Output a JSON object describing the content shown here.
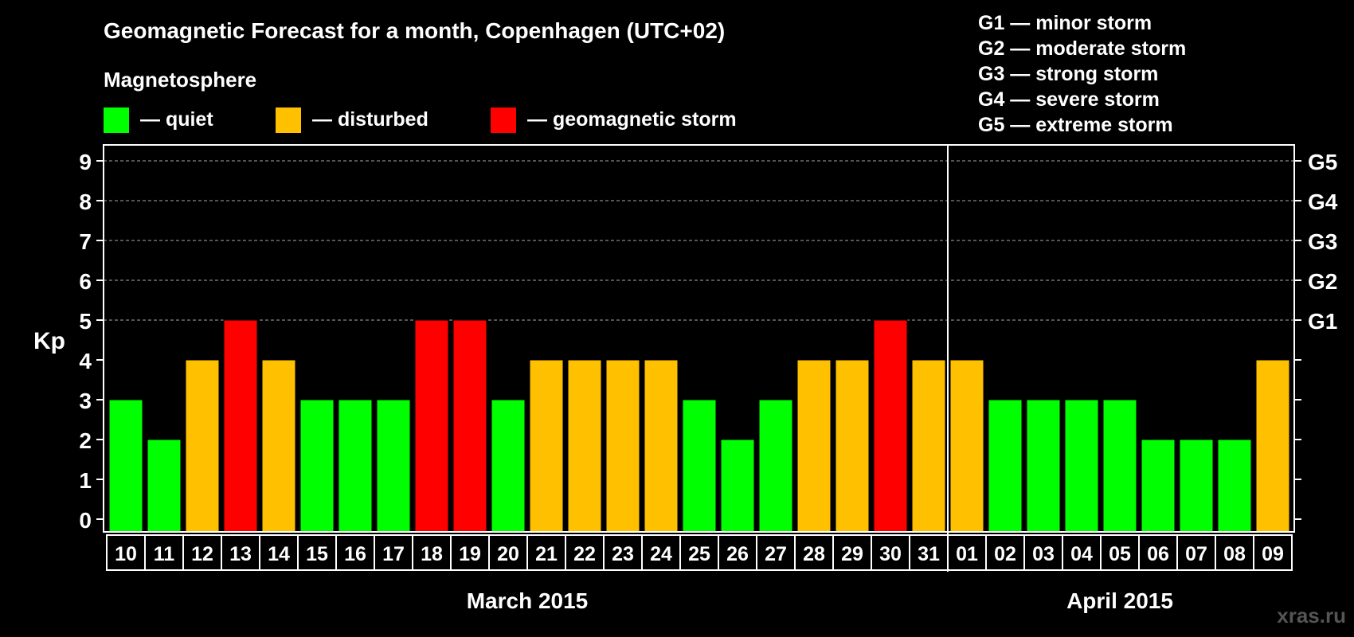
{
  "chart_data": {
    "type": "bar",
    "title": "Geomagnetic Forecast for a month, Copenhagen (UTC+02)",
    "ylabel": "Kp",
    "ylim": [
      0,
      9
    ],
    "yticks": [
      "0",
      "1",
      "2",
      "3",
      "4",
      "5",
      "6",
      "7",
      "8",
      "9"
    ],
    "right_ticks": [
      {
        "kp": 5,
        "label": "G1"
      },
      {
        "kp": 6,
        "label": "G2"
      },
      {
        "kp": 7,
        "label": "G3"
      },
      {
        "kp": 8,
        "label": "G4"
      },
      {
        "kp": 9,
        "label": "G5"
      }
    ],
    "grid_dashed_from": 5,
    "legend": {
      "heading": "Magnetosphere",
      "items": [
        {
          "label": "— quiet",
          "color": "#00ff00"
        },
        {
          "label": "— disturbed",
          "color": "#ffc000"
        },
        {
          "label": "— geomagnetic storm",
          "color": "#ff0000"
        }
      ]
    },
    "storm_scale": [
      "G1 — minor storm",
      "G2 — moderate storm",
      "G3 — strong storm",
      "G4 — severe storm",
      "G5 — extreme storm"
    ],
    "categories": [
      "10",
      "11",
      "12",
      "13",
      "14",
      "15",
      "16",
      "17",
      "18",
      "19",
      "20",
      "21",
      "22",
      "23",
      "24",
      "25",
      "26",
      "27",
      "28",
      "29",
      "30",
      "31",
      "01",
      "02",
      "03",
      "04",
      "05",
      "06",
      "07",
      "08",
      "09"
    ],
    "values": [
      3,
      2,
      4,
      5,
      4,
      3,
      3,
      3,
      5,
      5,
      3,
      4,
      4,
      4,
      4,
      3,
      2,
      3,
      4,
      4,
      5,
      4,
      4,
      3,
      3,
      3,
      3,
      2,
      2,
      2,
      4
    ],
    "colors": {
      "quiet": "#00ff00",
      "disturbed": "#ffc000",
      "storm": "#ff0000"
    },
    "months": [
      {
        "label": "March 2015",
        "start": 0,
        "end": 21
      },
      {
        "label": "April 2015",
        "start": 22,
        "end": 30
      }
    ],
    "watermark": "xras.ru"
  }
}
